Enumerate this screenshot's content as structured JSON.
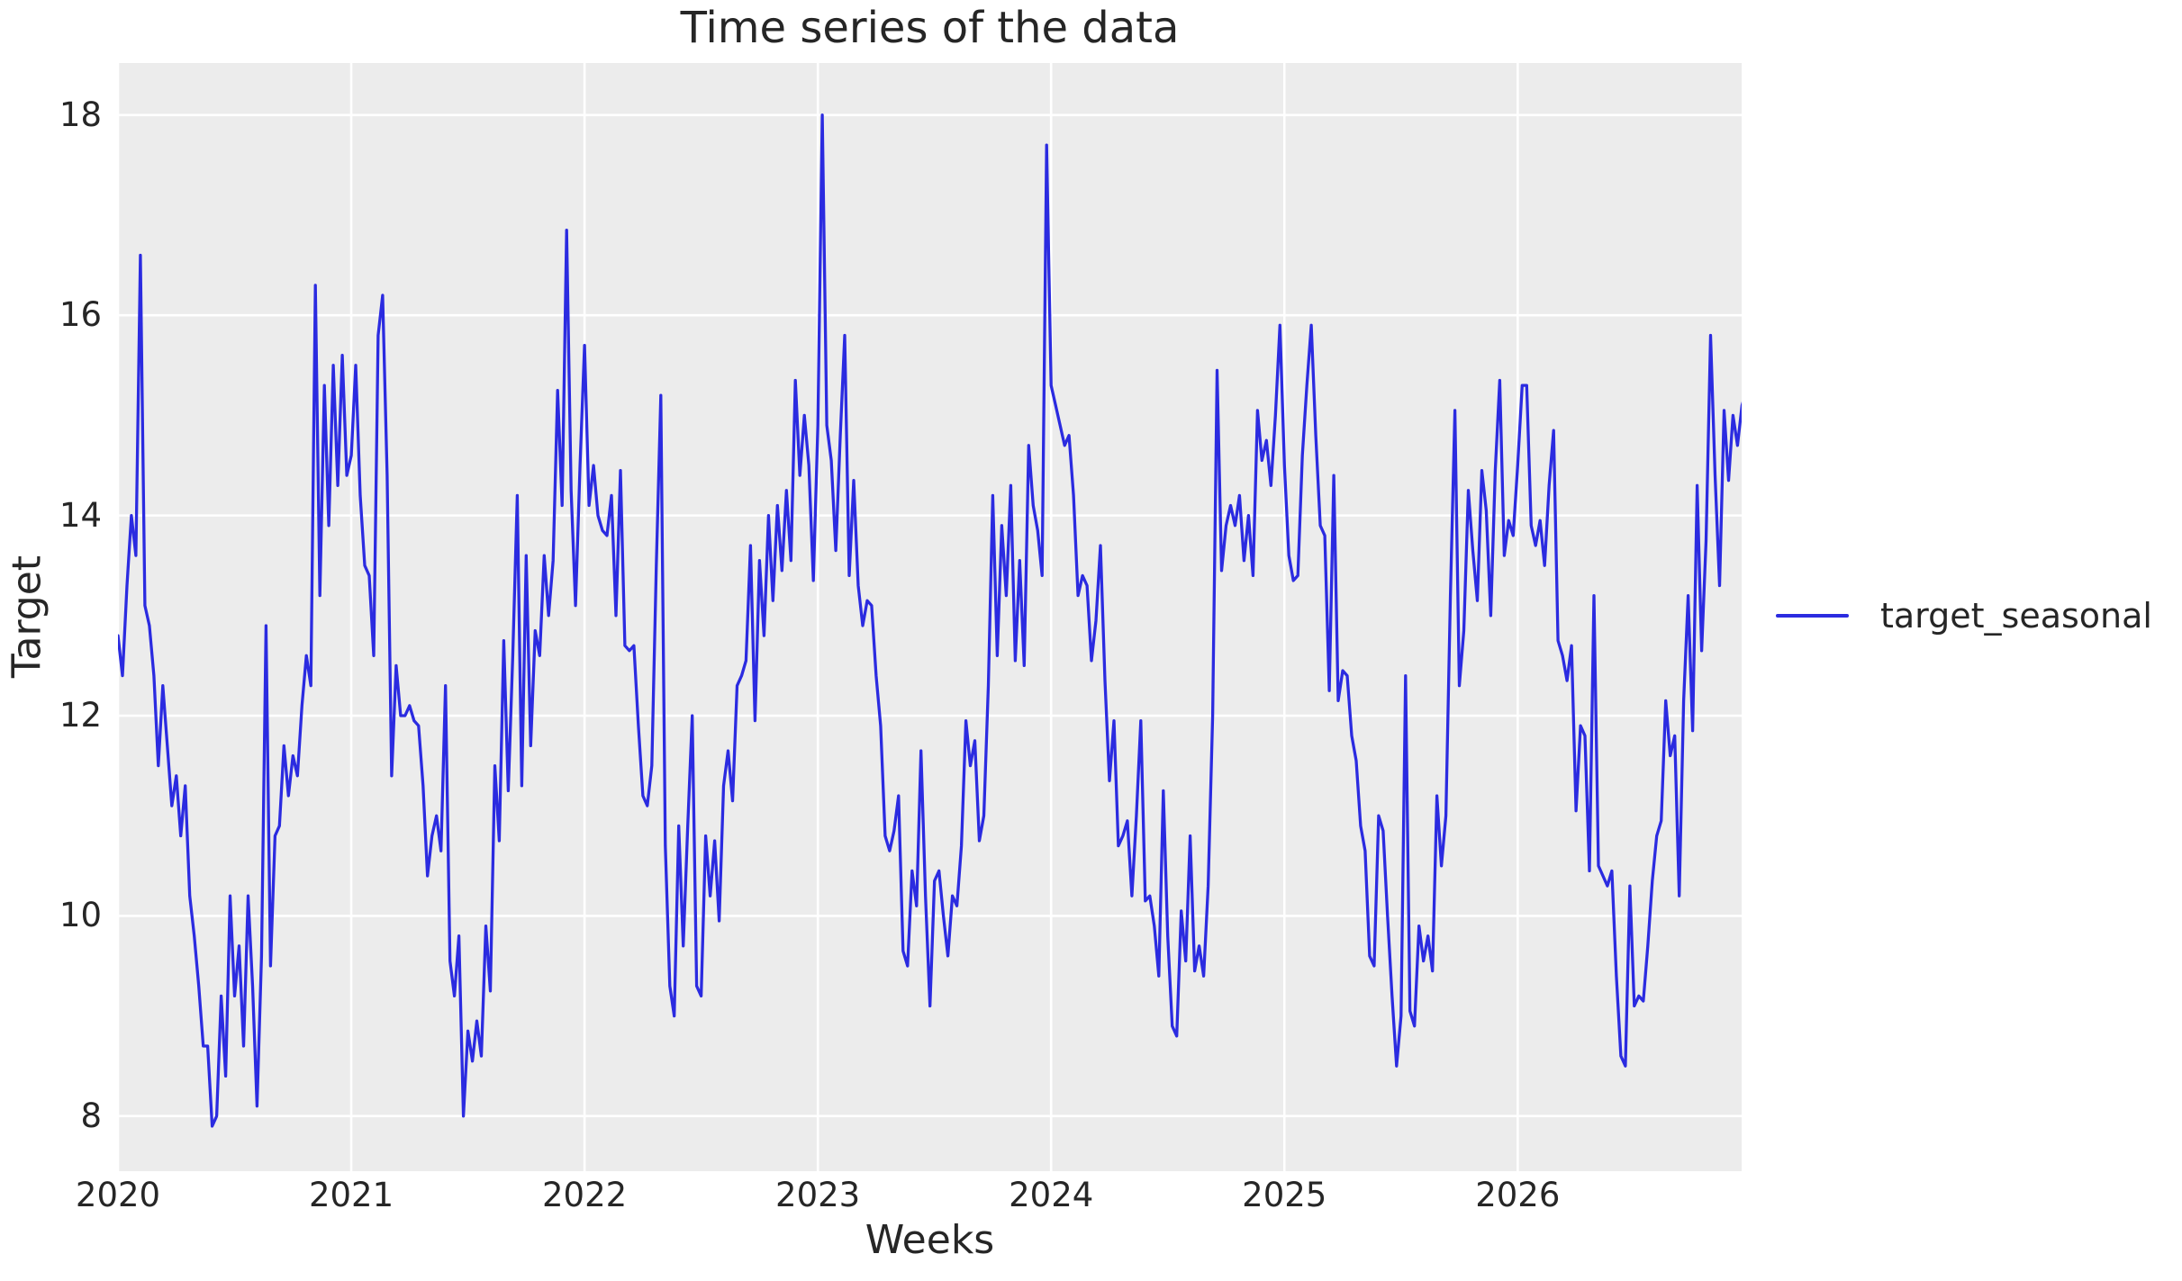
{
  "title": "Time series of the data",
  "axes": {
    "xlabel": "Weeks",
    "ylabel": "Target",
    "x_tick_labels": [
      "2020",
      "2021",
      "2022",
      "2023",
      "2024",
      "2025",
      "2026"
    ],
    "y_tick_labels": [
      "8",
      "10",
      "12",
      "14",
      "16",
      "18"
    ]
  },
  "legend": {
    "label": "target_seasonal",
    "position": "center right"
  },
  "colors": {
    "line": "#2b2be0",
    "plot_background": "#ececec",
    "grid": "#ffffff",
    "text": "#262626",
    "figure_background": "#ffffff"
  },
  "chart_data": {
    "type": "line",
    "title": "Time series of the data",
    "xlabel": "Weeks",
    "ylabel": "Target",
    "grid": true,
    "legend_position": "center right",
    "x_start": 2020,
    "points_per_year": 52,
    "x_unit": "weekly samples, one point per week from Jan 2020 to Dec 2026",
    "xlim": [
      2020,
      2026.96
    ],
    "ylim": [
      7.45,
      18.52
    ],
    "x_tick_years": [
      2020,
      2021,
      2022,
      2023,
      2024,
      2025,
      2026
    ],
    "y_tick_values": [
      8,
      10,
      12,
      14,
      16,
      18
    ],
    "series": [
      {
        "name": "target_seasonal",
        "color": "#2b2be0",
        "line_width": 3.3,
        "values": [
          12.8,
          12.4,
          13.3,
          14.0,
          13.6,
          16.6,
          13.1,
          12.9,
          12.4,
          11.5,
          12.3,
          11.7,
          11.1,
          11.4,
          10.8,
          11.3,
          10.2,
          9.8,
          9.3,
          8.7,
          8.7,
          7.9,
          8.0,
          9.2,
          8.4,
          10.2,
          9.2,
          9.7,
          8.7,
          10.2,
          9.3,
          8.1,
          9.6,
          12.9,
          9.5,
          10.8,
          10.9,
          11.7,
          11.2,
          11.6,
          11.4,
          12.1,
          12.6,
          12.3,
          16.3,
          13.2,
          15.3,
          13.9,
          15.5,
          14.3,
          15.6,
          14.4,
          14.6,
          15.5,
          14.2,
          13.5,
          13.4,
          12.6,
          15.8,
          16.2,
          14.4,
          11.4,
          12.5,
          12.0,
          12.0,
          12.1,
          11.95,
          11.9,
          11.3,
          10.4,
          10.8,
          11.0,
          10.65,
          12.3,
          9.55,
          9.2,
          9.8,
          8.0,
          8.85,
          8.55,
          8.95,
          8.6,
          9.9,
          9.25,
          11.5,
          10.75,
          12.75,
          11.25,
          12.6,
          14.2,
          11.3,
          13.6,
          11.7,
          12.85,
          12.6,
          13.6,
          13.0,
          13.55,
          15.25,
          14.1,
          16.85,
          14.25,
          13.1,
          14.5,
          15.7,
          14.1,
          14.5,
          14.0,
          13.85,
          13.8,
          14.2,
          13.0,
          14.45,
          12.7,
          12.65,
          12.7,
          11.9,
          11.2,
          11.1,
          11.5,
          13.5,
          15.2,
          10.7,
          9.3,
          9.0,
          10.9,
          9.7,
          10.9,
          12.0,
          9.3,
          9.2,
          10.8,
          10.2,
          10.75,
          9.95,
          11.3,
          11.65,
          11.15,
          12.3,
          12.4,
          12.55,
          13.7,
          11.95,
          13.55,
          12.8,
          14.0,
          13.15,
          14.1,
          13.45,
          14.25,
          13.55,
          15.35,
          14.4,
          15.0,
          14.5,
          13.35,
          14.9,
          18.0,
          14.9,
          14.55,
          13.65,
          14.8,
          15.8,
          13.4,
          14.35,
          13.3,
          12.9,
          13.15,
          13.1,
          12.4,
          11.9,
          10.8,
          10.65,
          10.85,
          11.2,
          9.65,
          9.5,
          10.45,
          10.1,
          11.65,
          10.2,
          9.1,
          10.35,
          10.45,
          10.0,
          9.6,
          10.2,
          10.1,
          10.7,
          11.95,
          11.5,
          11.75,
          10.75,
          11.0,
          12.3,
          14.2,
          12.6,
          13.9,
          13.2,
          14.3,
          12.55,
          13.55,
          12.5,
          14.7,
          14.1,
          13.85,
          13.4,
          17.7,
          15.3,
          15.1,
          14.9,
          14.7,
          14.8,
          14.2,
          13.2,
          13.4,
          13.3,
          12.55,
          12.95,
          13.7,
          12.35,
          11.35,
          11.95,
          10.7,
          10.8,
          10.95,
          10.2,
          11.0,
          11.95,
          10.15,
          10.2,
          9.9,
          9.4,
          11.25,
          9.8,
          8.9,
          8.8,
          10.05,
          9.55,
          10.8,
          9.45,
          9.7,
          9.4,
          10.3,
          12.0,
          15.45,
          13.45,
          13.9,
          14.1,
          13.9,
          14.2,
          13.55,
          14.0,
          13.4,
          15.05,
          14.55,
          14.75,
          14.3,
          15.0,
          15.9,
          14.5,
          13.6,
          13.35,
          13.4,
          14.6,
          15.3,
          15.9,
          14.8,
          13.9,
          13.8,
          12.25,
          14.4,
          12.15,
          12.45,
          12.4,
          11.8,
          11.55,
          10.9,
          10.65,
          9.6,
          9.5,
          11.0,
          10.85,
          10.0,
          9.2,
          8.5,
          9.0,
          12.4,
          9.05,
          8.9,
          9.9,
          9.55,
          9.8,
          9.45,
          11.2,
          10.5,
          11.0,
          13.2,
          15.05,
          12.3,
          12.85,
          14.25,
          13.65,
          13.15,
          14.45,
          14.05,
          13.0,
          14.45,
          15.35,
          13.6,
          13.95,
          13.8,
          14.5,
          15.3,
          15.3,
          13.9,
          13.7,
          13.95,
          13.5,
          14.3,
          14.85,
          12.75,
          12.6,
          12.35,
          12.7,
          11.05,
          11.9,
          11.8,
          10.45,
          13.2,
          10.5,
          10.4,
          10.3,
          10.45,
          9.4,
          8.6,
          8.5,
          10.3,
          9.1,
          9.2,
          9.15,
          9.7,
          10.35,
          10.8,
          10.95,
          12.15,
          11.6,
          11.8,
          10.2,
          12.15,
          13.2,
          11.85,
          14.3,
          12.65,
          13.75,
          15.8,
          14.4,
          13.3,
          15.05,
          14.35,
          15.0,
          14.7,
          15.1,
          15.25
        ]
      }
    ]
  }
}
